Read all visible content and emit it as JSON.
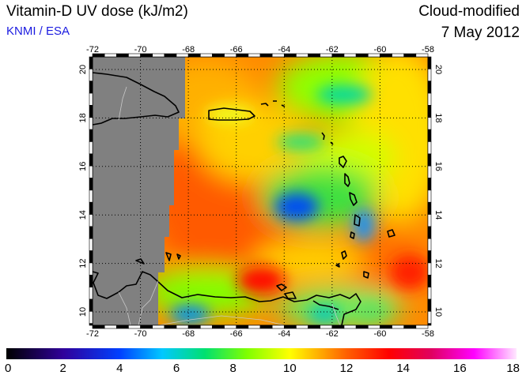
{
  "header": {
    "title": "Vitamin-D UV dose (kJ/m2)",
    "credit": "KNMI / ESA",
    "mode": "Cloud-modified",
    "date": "7 May 2012"
  },
  "map": {
    "lon_ticks": [
      "-72",
      "-70",
      "-68",
      "-66",
      "-64",
      "-62",
      "-60",
      "-58"
    ],
    "lat_ticks": [
      "10",
      "12",
      "14",
      "16",
      "18",
      "20"
    ],
    "lon_range": [
      -72,
      -58
    ],
    "lat_range": [
      9.5,
      20.5
    ],
    "no_data_color": "#808080",
    "grid": "dotted"
  },
  "colorbar": {
    "labels": [
      "0",
      "2",
      "4",
      "6",
      "8",
      "10",
      "12",
      "14",
      "16",
      "18"
    ],
    "range": [
      0,
      18
    ],
    "stops": [
      {
        "v": 0,
        "c": "#000000"
      },
      {
        "v": 2,
        "c": "#30009a"
      },
      {
        "v": 4,
        "c": "#0040ff"
      },
      {
        "v": 5.5,
        "c": "#00c8ff"
      },
      {
        "v": 7,
        "c": "#00e070"
      },
      {
        "v": 8.5,
        "c": "#80ff00"
      },
      {
        "v": 10,
        "c": "#ffff00"
      },
      {
        "v": 11,
        "c": "#ffb000"
      },
      {
        "v": 12,
        "c": "#ff6000"
      },
      {
        "v": 13.5,
        "c": "#ff0000"
      },
      {
        "v": 15,
        "c": "#e00060"
      },
      {
        "v": 16.5,
        "c": "#ff00ff"
      },
      {
        "v": 18,
        "c": "#ffe8ff"
      }
    ]
  }
}
